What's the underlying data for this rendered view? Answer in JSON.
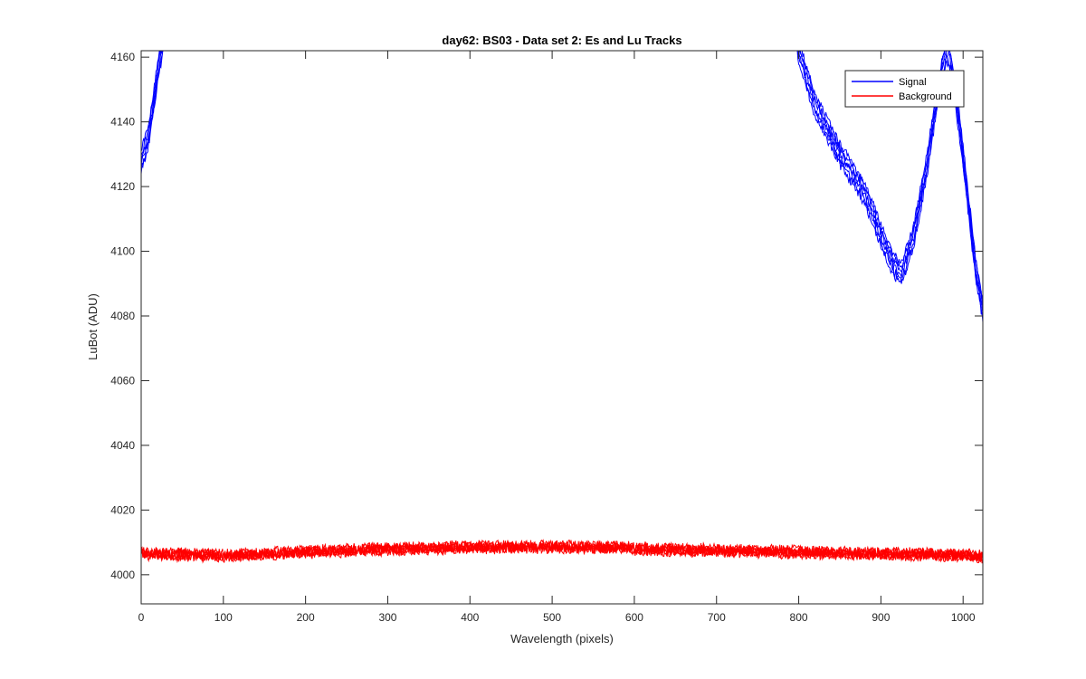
{
  "chart_data": {
    "type": "line",
    "title": "day62: BS03 - Data set 2: Es and Lu Tracks",
    "xlabel": "Wavelength (pixels)",
    "ylabel": "LuBot (ADU)",
    "xlim": [
      0,
      1024
    ],
    "ylim": [
      3991,
      4162
    ],
    "xticks": [
      0,
      100,
      200,
      300,
      400,
      500,
      600,
      700,
      800,
      900,
      1000
    ],
    "yticks": [
      4000,
      4020,
      4040,
      4060,
      4080,
      4100,
      4120,
      4140,
      4160
    ],
    "grid": false,
    "legend_position": "top-right",
    "series": [
      {
        "name": "Signal",
        "color": "#0000ff",
        "track_count": 6,
        "x": [
          0,
          5,
          10,
          15,
          20,
          25,
          30,
          795,
          800,
          820,
          850,
          880,
          900,
          915,
          925,
          940,
          955,
          965,
          975,
          980,
          985,
          995,
          1005,
          1015,
          1024
        ],
        "y": [
          4128,
          4132,
          4137,
          4146,
          4155,
          4163,
          4170,
          4170,
          4162,
          4145,
          4130,
          4118,
          4105,
          4096,
          4093,
          4105,
          4125,
          4142,
          4157,
          4162,
          4158,
          4140,
          4118,
          4095,
          4082
        ]
      },
      {
        "name": "Background",
        "color": "#ff0000",
        "track_count": 6,
        "x": [
          0,
          100,
          200,
          300,
          400,
          500,
          580,
          600,
          700,
          800,
          900,
          1000,
          1024
        ],
        "y": [
          4006.5,
          4006,
          4007,
          4008,
          4008.5,
          4008.5,
          4008.5,
          4008,
          4007.5,
          4007,
          4006.5,
          4006,
          4005.5
        ],
        "noise_amplitude": 1.6
      }
    ]
  }
}
